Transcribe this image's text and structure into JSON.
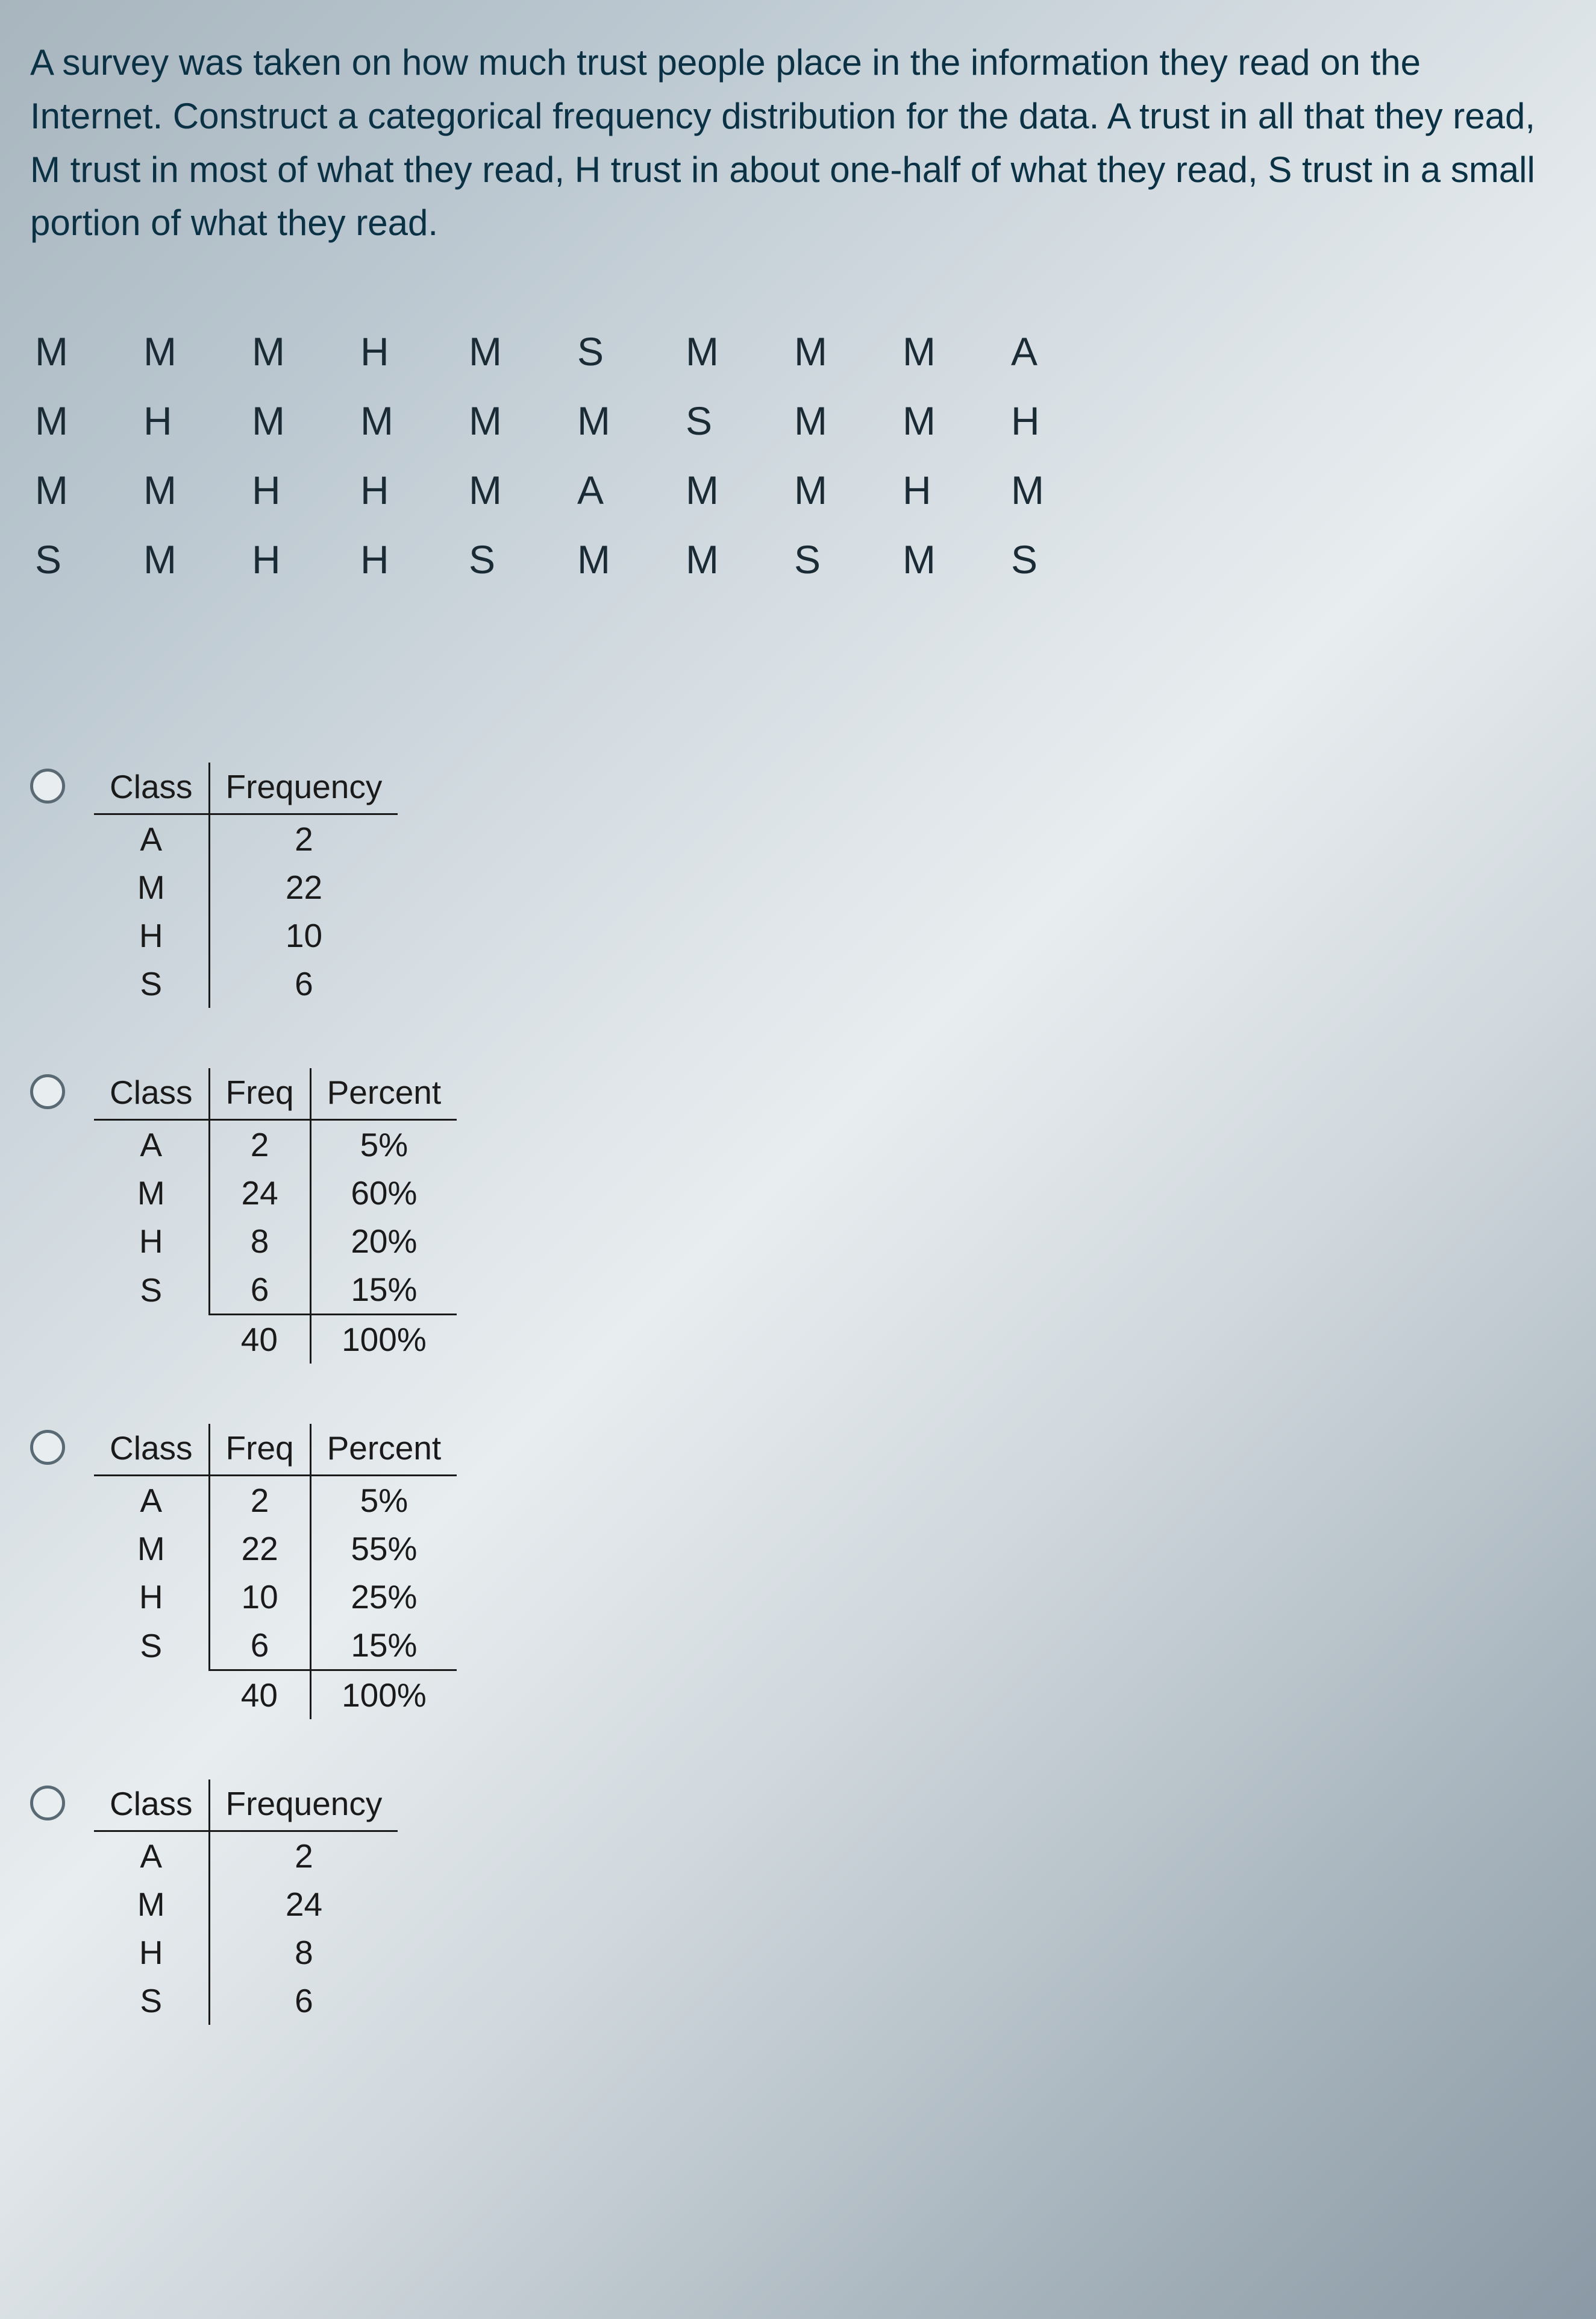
{
  "question_text": "A survey was taken on how much trust people place in the information they read on the Internet. Construct a categorical frequency distribution for the data. A trust in all that they read, M trust in most of what they read, H trust in about one-half of what they read, S trust in a small portion of what they read.",
  "data_grid": {
    "rows": [
      [
        "M",
        "M",
        "M",
        "H",
        "M",
        "S",
        "M",
        "M",
        "M",
        "A"
      ],
      [
        "M",
        "H",
        "M",
        "M",
        "M",
        "M",
        "S",
        "M",
        "M",
        "H"
      ],
      [
        "M",
        "M",
        "H",
        "H",
        "M",
        "A",
        "M",
        "M",
        "H",
        "M"
      ],
      [
        "S",
        "M",
        "H",
        "H",
        "S",
        "M",
        "M",
        "S",
        "M",
        "S"
      ]
    ],
    "fontsize": 66,
    "color": "#1a2b35"
  },
  "table_headers": {
    "class": "Class",
    "frequency": "Frequency",
    "freq_short": "Freq",
    "percent": "Percent"
  },
  "options": [
    {
      "type": "class_freq",
      "columns": [
        "Class",
        "Frequency"
      ],
      "rows": [
        {
          "class": "A",
          "freq": "2"
        },
        {
          "class": "M",
          "freq": "22"
        },
        {
          "class": "H",
          "freq": "10"
        },
        {
          "class": "S",
          "freq": "6"
        }
      ]
    },
    {
      "type": "class_freq_percent",
      "columns": [
        "Class",
        "Freq",
        "Percent"
      ],
      "rows": [
        {
          "class": "A",
          "freq": "2",
          "percent": "5%"
        },
        {
          "class": "M",
          "freq": "24",
          "percent": "60%"
        },
        {
          "class": "H",
          "freq": "8",
          "percent": "20%"
        },
        {
          "class": "S",
          "freq": "6",
          "percent": "15%"
        }
      ],
      "total": {
        "freq": "40",
        "percent": "100%"
      }
    },
    {
      "type": "class_freq_percent",
      "columns": [
        "Class",
        "Freq",
        "Percent"
      ],
      "rows": [
        {
          "class": "A",
          "freq": "2",
          "percent": "5%"
        },
        {
          "class": "M",
          "freq": "22",
          "percent": "55%"
        },
        {
          "class": "H",
          "freq": "10",
          "percent": "25%"
        },
        {
          "class": "S",
          "freq": "6",
          "percent": "15%"
        }
      ],
      "total": {
        "freq": "40",
        "percent": "100%"
      }
    },
    {
      "type": "class_freq",
      "columns": [
        "Class",
        "Frequency"
      ],
      "rows": [
        {
          "class": "A",
          "freq": "2"
        },
        {
          "class": "M",
          "freq": "24"
        },
        {
          "class": "H",
          "freq": "8"
        },
        {
          "class": "S",
          "freq": "6"
        }
      ]
    }
  ],
  "styling": {
    "question_fontsize": 60,
    "question_color": "#0b3145",
    "table_fontsize": 55,
    "table_text_color": "#1a1a1a",
    "border_color": "#1a1a1a",
    "radio_border": "#5a6a74",
    "radio_size": 58,
    "background_gradient": [
      "#a8b5be",
      "#b8c5ce",
      "#d5dde2",
      "#e8edef",
      "#d0d8dd",
      "#a5b2bb",
      "#8a99a5"
    ]
  }
}
